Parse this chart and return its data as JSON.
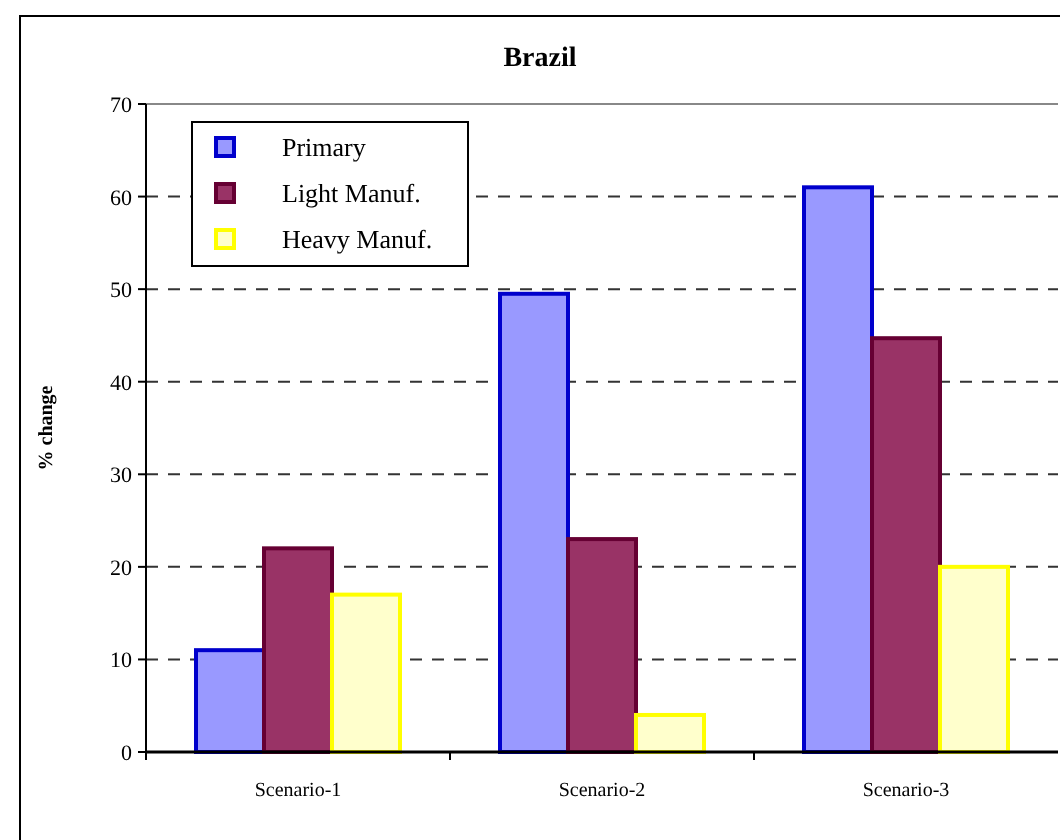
{
  "chart_data": {
    "type": "bar",
    "title": "Brazil",
    "ylabel": "% change",
    "categories": [
      "Scenario-1",
      "Scenario-2",
      "Scenario-3"
    ],
    "series": [
      {
        "name": "Primary",
        "color": "#9999ff",
        "values": [
          11,
          49.5,
          61
        ]
      },
      {
        "name": "Light Manuf.",
        "color": "#993366",
        "values": [
          22,
          23,
          44.7
        ]
      },
      {
        "name": "Heavy Manuf.",
        "color": "#ffffcc",
        "values": [
          17,
          4,
          20
        ]
      }
    ],
    "ylim": [
      0,
      70
    ],
    "yticks": [
      0,
      10,
      20,
      30,
      40,
      50,
      60,
      70
    ],
    "grid": "y",
    "legend": "top left"
  }
}
